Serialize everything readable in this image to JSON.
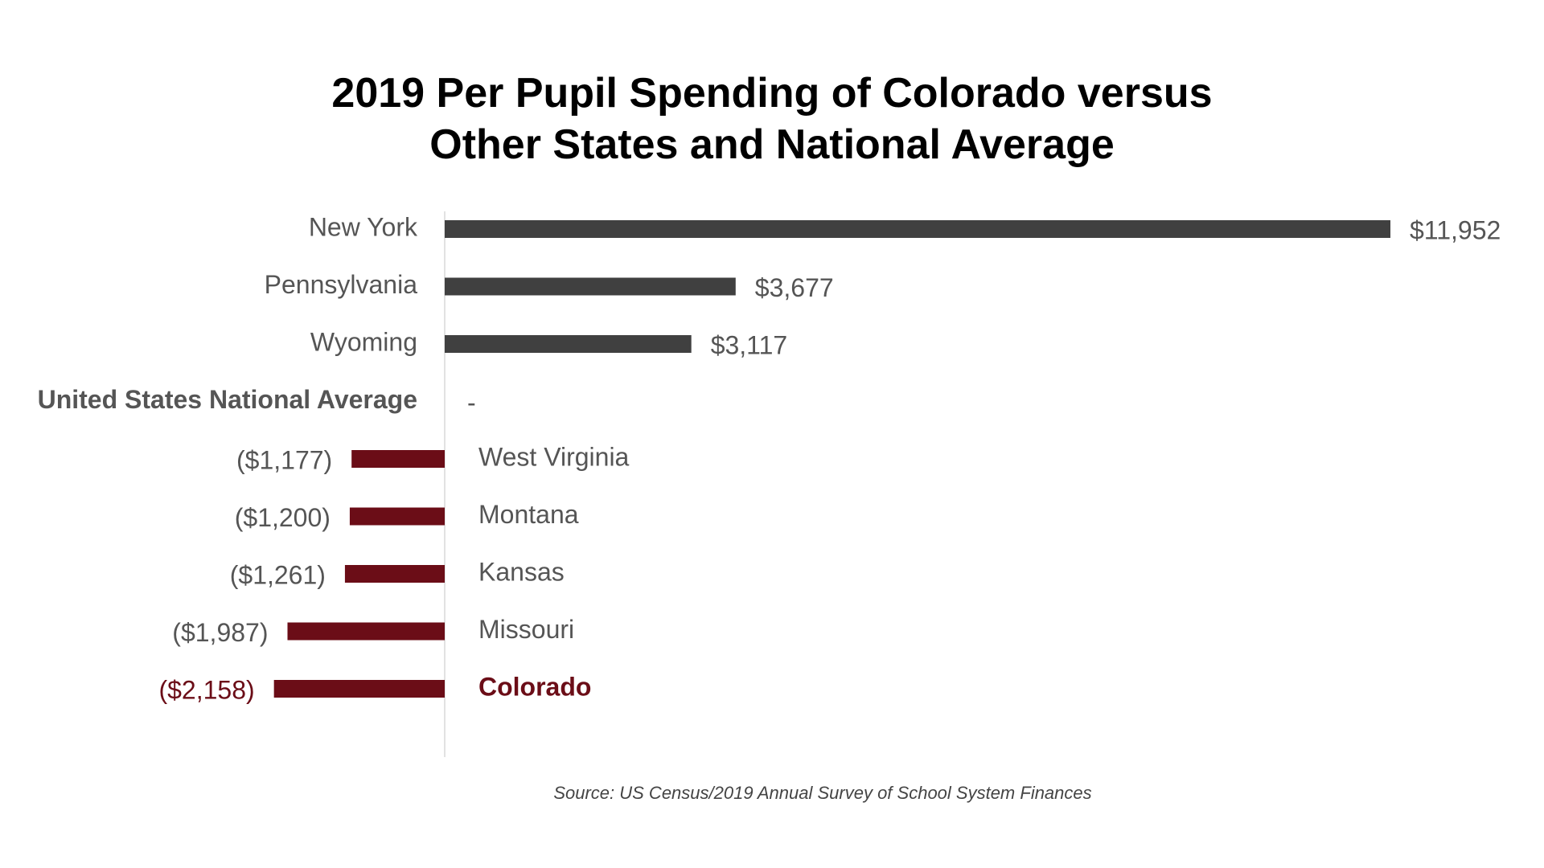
{
  "title_lines": [
    "2019 Per Pupil Spending of Colorado versus",
    "Other States and National Average"
  ],
  "source": "Source: US Census/2019 Annual Survey of School System Finances",
  "colors": {
    "positive_bar": "#404040",
    "negative_bar": "#6b0d17",
    "highlight_text": "#6b0d17",
    "label_text": "#555555",
    "axis_line": "#d9d9d9"
  },
  "chart_data": {
    "type": "bar",
    "orientation": "horizontal",
    "title": "2019 Per Pupil Spending of Colorado versus Other States and National Average",
    "categories": [
      "New York",
      "Pennsylvania",
      "Wyoming",
      "United States National Average",
      "West Virginia",
      "Montana",
      "Kansas",
      "Missouri",
      "Colorado"
    ],
    "values": [
      11952,
      3677,
      3117,
      0,
      -1177,
      -1200,
      -1261,
      -1987,
      -2158
    ],
    "value_labels": [
      "$11,952",
      "$3,677",
      "$3,117",
      "-",
      "($1,177)",
      "($1,200)",
      "($1,261)",
      "($1,987)",
      "($2,158)"
    ],
    "bold_categories": [
      "United States National Average",
      "Colorado"
    ],
    "highlight_category": "Colorado",
    "xlabel": "",
    "ylabel": "",
    "grid": false,
    "legend": "none"
  }
}
